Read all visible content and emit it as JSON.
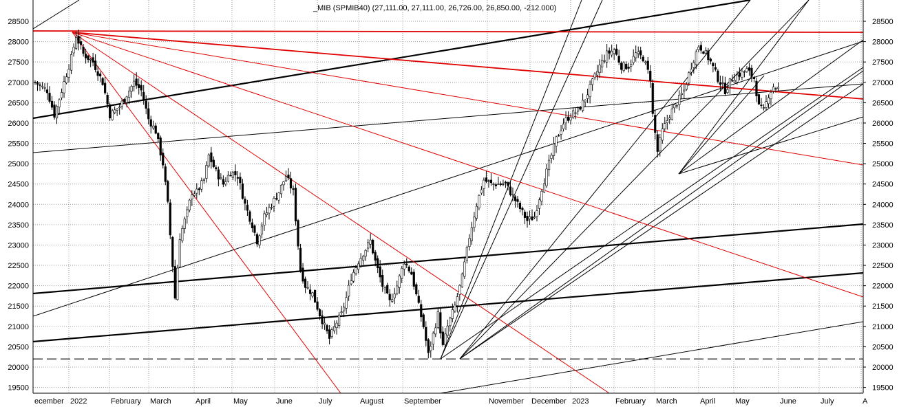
{
  "chart_data": {
    "type": "candlestick",
    "title": "_MIB (SPMIB40) (27,111.00, 27,111.00, 26,726.00, 26,850.00, -212.000)",
    "ylim": [
      19400,
      28950
    ],
    "y_ticks": [
      19500,
      20000,
      20500,
      21000,
      21500,
      22000,
      22500,
      23000,
      23500,
      24000,
      24500,
      25000,
      25500,
      26000,
      26500,
      27000,
      27500,
      28000,
      28500
    ],
    "x_tick_labels": [
      "ecember",
      "2022",
      "February",
      "March",
      "April",
      "May",
      "June",
      "July",
      "August",
      "September",
      "November",
      "December",
      "2023",
      "February",
      "March",
      "April",
      "May",
      "June",
      "July",
      "A"
    ],
    "grid": true,
    "price_anchors_by_bar": [
      [
        0,
        27000
      ],
      [
        5,
        26800
      ],
      [
        8,
        26200
      ],
      [
        12,
        27000
      ],
      [
        15,
        27600
      ],
      [
        17,
        28150
      ],
      [
        20,
        27700
      ],
      [
        24,
        27500
      ],
      [
        28,
        27000
      ],
      [
        31,
        26200
      ],
      [
        35,
        26400
      ],
      [
        38,
        26700
      ],
      [
        41,
        27000
      ],
      [
        44,
        26800
      ],
      [
        47,
        26100
      ],
      [
        50,
        25800
      ],
      [
        53,
        25000
      ],
      [
        55,
        24000
      ],
      [
        57,
        22500
      ],
      [
        58,
        21700
      ],
      [
        60,
        23200
      ],
      [
        63,
        23800
      ],
      [
        65,
        24300
      ],
      [
        67,
        24300
      ],
      [
        70,
        24600
      ],
      [
        72,
        25200
      ],
      [
        75,
        24800
      ],
      [
        78,
        24500
      ],
      [
        81,
        24800
      ],
      [
        84,
        24700
      ],
      [
        87,
        24000
      ],
      [
        90,
        23500
      ],
      [
        92,
        23100
      ],
      [
        95,
        23700
      ],
      [
        98,
        24000
      ],
      [
        101,
        24300
      ],
      [
        104,
        24700
      ],
      [
        107,
        24300
      ],
      [
        109,
        23000
      ],
      [
        110,
        22400
      ],
      [
        112,
        22000
      ],
      [
        115,
        21800
      ],
      [
        118,
        21300
      ],
      [
        120,
        21000
      ],
      [
        122,
        20700
      ],
      [
        125,
        21100
      ],
      [
        127,
        21300
      ],
      [
        129,
        21700
      ],
      [
        131,
        22200
      ],
      [
        134,
        22600
      ],
      [
        137,
        22900
      ],
      [
        139,
        23100
      ],
      [
        141,
        22600
      ],
      [
        144,
        22000
      ],
      [
        147,
        21600
      ],
      [
        150,
        22000
      ],
      [
        153,
        22600
      ],
      [
        156,
        22300
      ],
      [
        159,
        21500
      ],
      [
        161,
        21000
      ],
      [
        163,
        20300
      ],
      [
        165,
        20800
      ],
      [
        167,
        21300
      ],
      [
        169,
        20500
      ],
      [
        171,
        21000
      ],
      [
        174,
        21500
      ],
      [
        177,
        22200
      ],
      [
        180,
        23200
      ],
      [
        183,
        24000
      ],
      [
        186,
        24600
      ],
      [
        189,
        24500
      ],
      [
        192,
        24500
      ],
      [
        195,
        24500
      ],
      [
        198,
        24200
      ],
      [
        201,
        23900
      ],
      [
        204,
        23600
      ],
      [
        207,
        23700
      ],
      [
        210,
        24400
      ],
      [
        213,
        25000
      ],
      [
        216,
        25600
      ],
      [
        219,
        26000
      ],
      [
        222,
        26200
      ],
      [
        225,
        26300
      ],
      [
        228,
        26600
      ],
      [
        231,
        27000
      ],
      [
        234,
        27400
      ],
      [
        237,
        27700
      ],
      [
        240,
        27800
      ],
      [
        243,
        27400
      ],
      [
        246,
        27400
      ],
      [
        249,
        27700
      ],
      [
        252,
        27600
      ],
      [
        255,
        27100
      ],
      [
        256,
        26200
      ],
      [
        258,
        25300
      ],
      [
        260,
        25800
      ],
      [
        263,
        26200
      ],
      [
        266,
        26500
      ],
      [
        269,
        26800
      ],
      [
        272,
        27400
      ],
      [
        275,
        27900
      ],
      [
        277,
        27800
      ],
      [
        280,
        27500
      ],
      [
        283,
        27100
      ],
      [
        286,
        26800
      ],
      [
        289,
        27100
      ],
      [
        292,
        27200
      ],
      [
        295,
        27300
      ],
      [
        298,
        27100
      ],
      [
        300,
        26400
      ],
      [
        302,
        26300
      ],
      [
        304,
        26700
      ],
      [
        306,
        26900
      ],
      [
        308,
        26850
      ]
    ],
    "bar_count": 309,
    "reference_levels": [
      20200
    ]
  }
}
